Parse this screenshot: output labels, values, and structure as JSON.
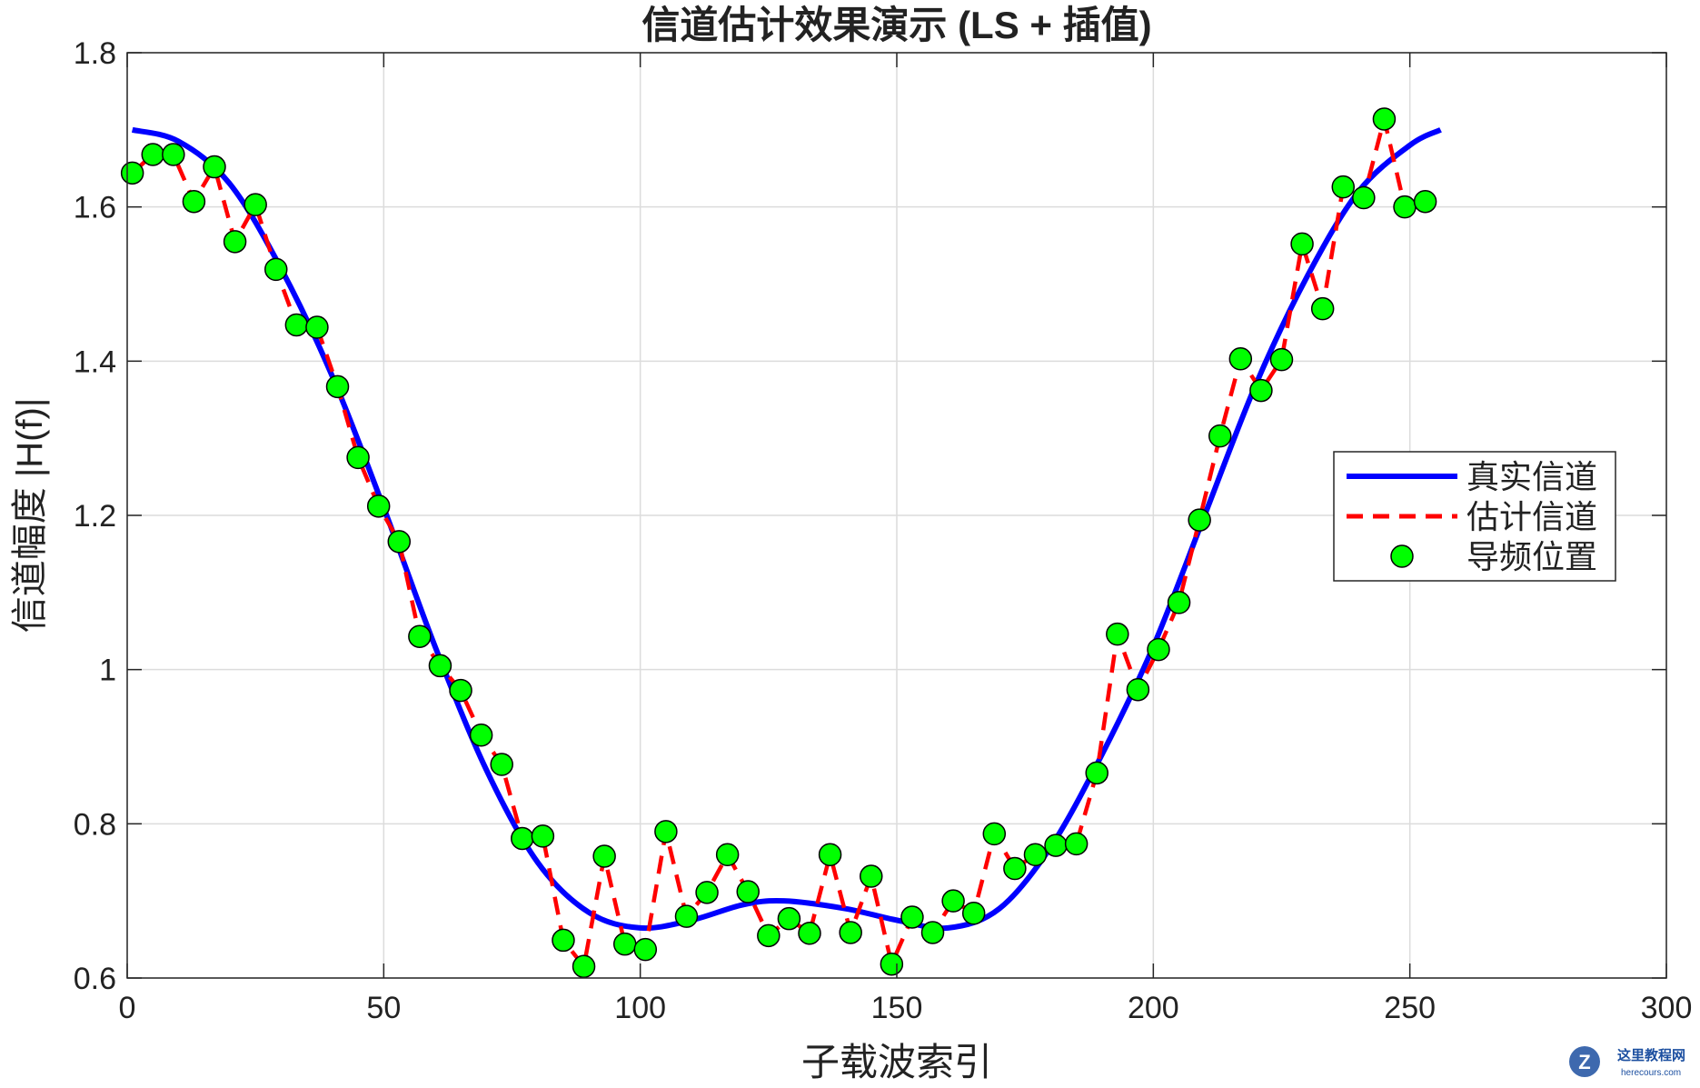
{
  "chart_data": {
    "type": "line",
    "title": "信道估计效果演示 (LS + 插值)",
    "xlabel": "子载波索引",
    "ylabel": "信道幅度 |H(f)|",
    "xlim": [
      0,
      300
    ],
    "ylim": [
      0.6,
      1.8
    ],
    "xticks": [
      0,
      50,
      100,
      150,
      200,
      250,
      300
    ],
    "yticks": [
      0.6,
      0.8,
      1,
      1.2,
      1.4,
      1.6,
      1.8
    ],
    "xtick_labels": [
      "0",
      "50",
      "100",
      "150",
      "200",
      "250",
      "300"
    ],
    "ytick_labels": [
      "0.6",
      "0.8",
      "1",
      "1.2",
      "1.4",
      "1.6",
      "1.8"
    ],
    "grid": true,
    "legend_position": "right",
    "series": [
      {
        "name": "真实信道",
        "style": "solid",
        "color": "#0000ff",
        "x": [
          1,
          10,
          20,
          30,
          40,
          50,
          60,
          70,
          80,
          90,
          100,
          110,
          120,
          128,
          140,
          150,
          160,
          170,
          180,
          190,
          200,
          210,
          220,
          230,
          240,
          250,
          256
        ],
        "y": [
          1.7,
          1.685,
          1.63,
          1.52,
          1.38,
          1.21,
          1.03,
          0.87,
          0.75,
          0.685,
          0.665,
          0.675,
          0.695,
          0.7,
          0.69,
          0.675,
          0.665,
          0.69,
          0.77,
          0.89,
          1.03,
          1.2,
          1.37,
          1.51,
          1.62,
          1.68,
          1.7
        ]
      },
      {
        "name": "估计信道",
        "style": "dashed",
        "color": "#ff0000",
        "x": [
          1,
          5,
          9,
          13,
          17,
          21,
          25,
          29,
          33,
          37,
          41,
          45,
          49,
          53,
          57,
          61,
          65,
          69,
          73,
          77,
          81,
          85,
          89,
          93,
          97,
          101,
          105,
          109,
          113,
          117,
          121,
          125,
          129,
          133,
          137,
          141,
          145,
          149,
          153,
          157,
          161,
          165,
          169,
          173,
          177,
          181,
          185,
          189,
          193,
          197,
          201,
          205,
          209,
          213,
          217,
          221,
          225,
          229,
          233,
          237,
          241,
          245,
          249,
          253
        ],
        "y": [
          1.644,
          1.668,
          1.668,
          1.607,
          1.652,
          1.555,
          1.603,
          1.519,
          1.447,
          1.444,
          1.367,
          1.275,
          1.212,
          1.166,
          1.043,
          1.005,
          0.973,
          0.915,
          0.877,
          0.781,
          0.784,
          0.649,
          0.615,
          0.758,
          0.644,
          0.637,
          0.79,
          0.68,
          0.711,
          0.76,
          0.712,
          0.655,
          0.677,
          0.658,
          0.76,
          0.659,
          0.732,
          0.618,
          0.679,
          0.659,
          0.7,
          0.684,
          0.787,
          0.742,
          0.76,
          0.772,
          0.774,
          0.866,
          1.046,
          0.974,
          1.026,
          1.087,
          1.194,
          1.303,
          1.403,
          1.362,
          1.402,
          1.552,
          1.468,
          1.626,
          1.612,
          1.714,
          1.6,
          1.607
        ]
      },
      {
        "name": "导频位置",
        "style": "markers",
        "color": "#00ff00",
        "x": [
          1,
          5,
          9,
          13,
          17,
          21,
          25,
          29,
          33,
          37,
          41,
          45,
          49,
          53,
          57,
          61,
          65,
          69,
          73,
          77,
          81,
          85,
          89,
          93,
          97,
          101,
          105,
          109,
          113,
          117,
          121,
          125,
          129,
          133,
          137,
          141,
          145,
          149,
          153,
          157,
          161,
          165,
          169,
          173,
          177,
          181,
          185,
          189,
          193,
          197,
          201,
          205,
          209,
          213,
          217,
          221,
          225,
          229,
          233,
          237,
          241,
          245,
          249,
          253
        ],
        "y": [
          1.644,
          1.668,
          1.668,
          1.607,
          1.652,
          1.555,
          1.603,
          1.519,
          1.447,
          1.444,
          1.367,
          1.275,
          1.212,
          1.166,
          1.043,
          1.005,
          0.973,
          0.915,
          0.877,
          0.781,
          0.784,
          0.649,
          0.615,
          0.758,
          0.644,
          0.637,
          0.79,
          0.68,
          0.711,
          0.76,
          0.712,
          0.655,
          0.677,
          0.658,
          0.76,
          0.659,
          0.732,
          0.618,
          0.679,
          0.659,
          0.7,
          0.684,
          0.787,
          0.742,
          0.76,
          0.772,
          0.774,
          0.866,
          1.046,
          0.974,
          1.026,
          1.087,
          1.194,
          1.303,
          1.403,
          1.362,
          1.402,
          1.552,
          1.468,
          1.626,
          1.612,
          1.714,
          1.6,
          1.607
        ]
      }
    ]
  },
  "watermark": {
    "name": "这里教程网",
    "url": "herecours.com"
  }
}
